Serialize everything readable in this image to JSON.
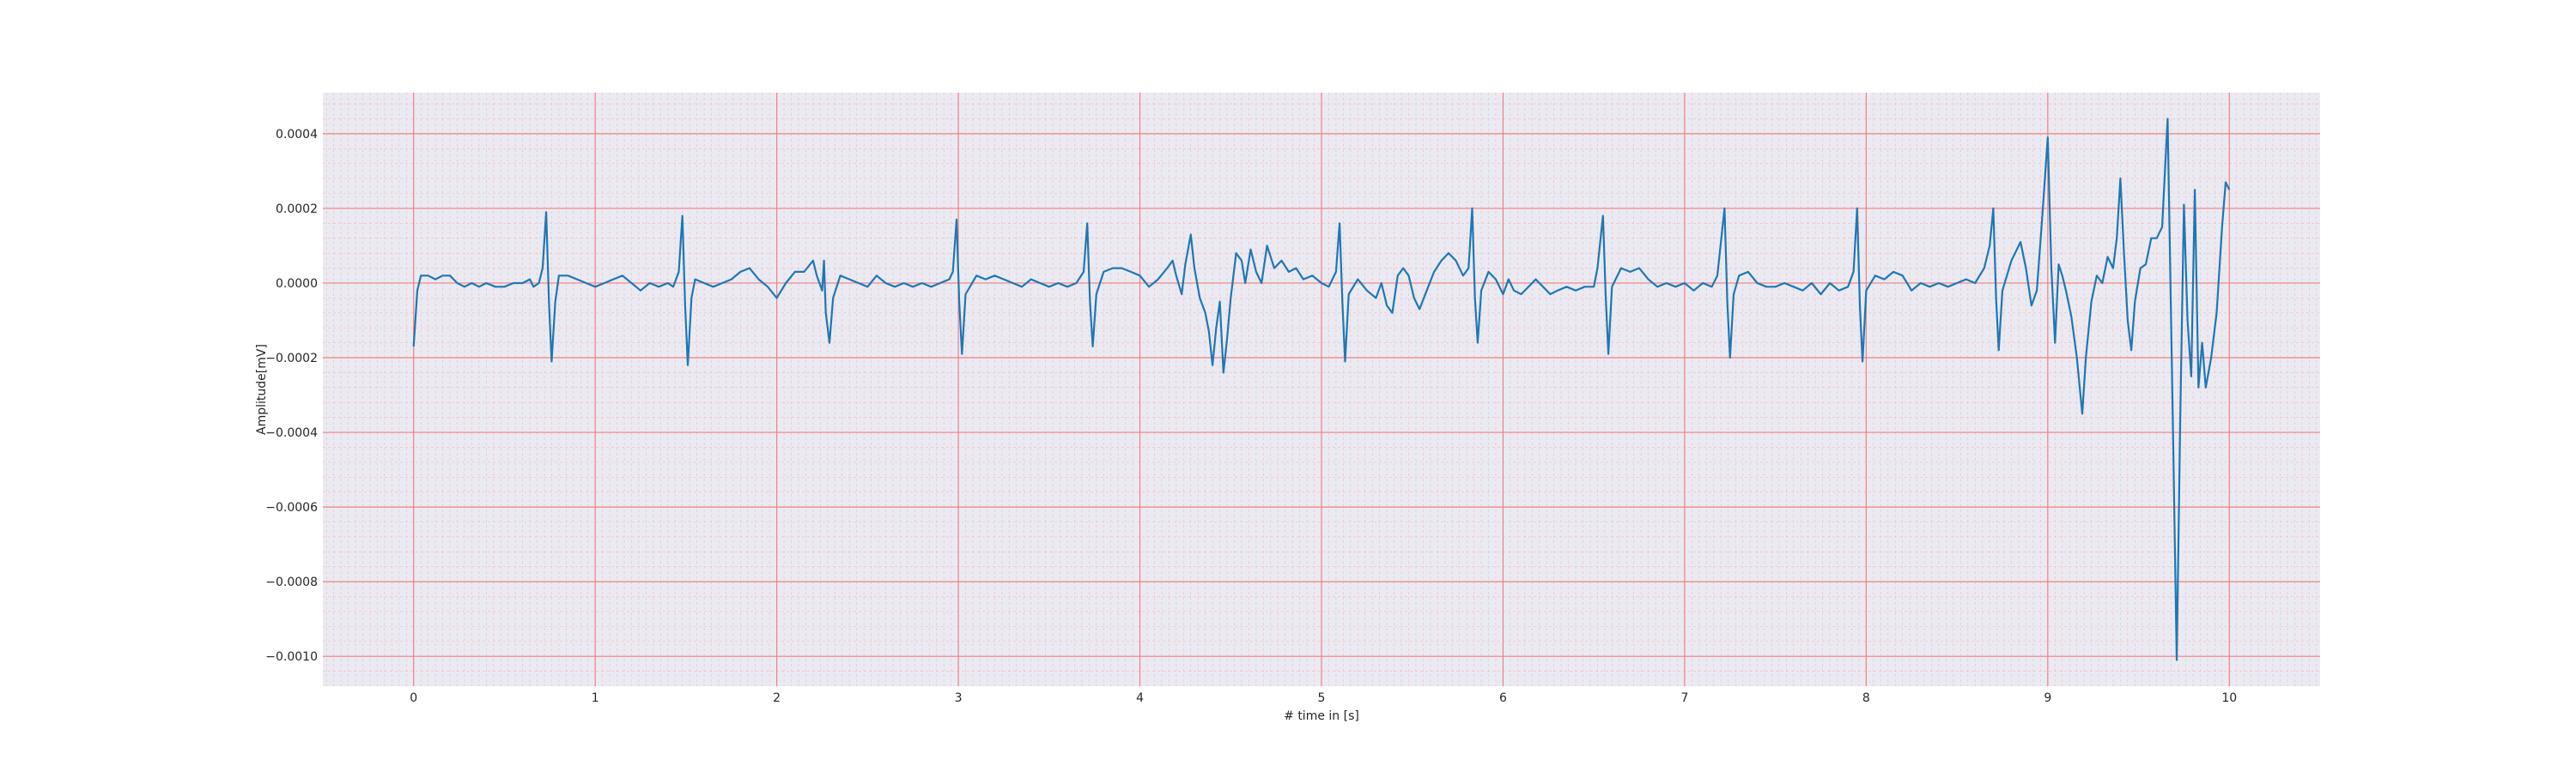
{
  "chart_data": {
    "type": "line",
    "title": "",
    "xlabel": "# time in [s]",
    "ylabel": "Amplitude[mV]",
    "xlim": [
      -0.5,
      10.5
    ],
    "ylim": [
      -0.00108,
      0.00051
    ],
    "xticks": [
      0,
      1,
      2,
      3,
      4,
      5,
      6,
      7,
      8,
      9,
      10
    ],
    "xtick_labels": [
      "0",
      "1",
      "2",
      "3",
      "4",
      "5",
      "6",
      "7",
      "8",
      "9",
      "10"
    ],
    "yticks": [
      0.0004,
      0.0002,
      0.0,
      -0.0002,
      -0.0004,
      -0.0006,
      -0.0008,
      -0.001
    ],
    "ytick_labels": [
      "0.0004",
      "0.0002",
      "0.0000",
      "−0.0002",
      "−0.0004",
      "−0.0006",
      "−0.0008",
      "−0.0010"
    ],
    "grid": true,
    "grid_style": "ecg",
    "background": "#eaeaf2",
    "grid_major_color": "#f08080",
    "grid_minor_color": "#f6b8b8",
    "series": [
      {
        "color": "#1f77b4",
        "points": [
          [
            0.0,
            -0.00017
          ],
          [
            0.02,
            -2e-05
          ],
          [
            0.04,
            2e-05
          ],
          [
            0.08,
            2e-05
          ],
          [
            0.12,
            1e-05
          ],
          [
            0.16,
            2e-05
          ],
          [
            0.2,
            2e-05
          ],
          [
            0.24,
            0.0
          ],
          [
            0.28,
            -1e-05
          ],
          [
            0.32,
            0.0
          ],
          [
            0.36,
            -1e-05
          ],
          [
            0.4,
            0.0
          ],
          [
            0.45,
            -1e-05
          ],
          [
            0.5,
            -1e-05
          ],
          [
            0.55,
            0.0
          ],
          [
            0.6,
            0.0
          ],
          [
            0.64,
            1e-05
          ],
          [
            0.66,
            -1e-05
          ],
          [
            0.69,
            0.0
          ],
          [
            0.71,
            4e-05
          ],
          [
            0.73,
            0.00019
          ],
          [
            0.745,
            -5e-05
          ],
          [
            0.76,
            -0.00021
          ],
          [
            0.78,
            -5e-05
          ],
          [
            0.8,
            2e-05
          ],
          [
            0.85,
            2e-05
          ],
          [
            0.9,
            1e-05
          ],
          [
            0.95,
            0.0
          ],
          [
            1.0,
            -1e-05
          ],
          [
            1.05,
            0.0
          ],
          [
            1.1,
            1e-05
          ],
          [
            1.15,
            2e-05
          ],
          [
            1.2,
            0.0
          ],
          [
            1.25,
            -2e-05
          ],
          [
            1.3,
            0.0
          ],
          [
            1.35,
            -1e-05
          ],
          [
            1.4,
            0.0
          ],
          [
            1.43,
            -1e-05
          ],
          [
            1.46,
            3e-05
          ],
          [
            1.48,
            0.00018
          ],
          [
            1.495,
            -6e-05
          ],
          [
            1.51,
            -0.00022
          ],
          [
            1.53,
            -4e-05
          ],
          [
            1.55,
            1e-05
          ],
          [
            1.6,
            0.0
          ],
          [
            1.65,
            -1e-05
          ],
          [
            1.7,
            0.0
          ],
          [
            1.75,
            1e-05
          ],
          [
            1.8,
            3e-05
          ],
          [
            1.85,
            4e-05
          ],
          [
            1.9,
            1e-05
          ],
          [
            1.95,
            -1e-05
          ],
          [
            2.0,
            -4e-05
          ],
          [
            2.05,
            0.0
          ],
          [
            2.1,
            3e-05
          ],
          [
            2.15,
            3e-05
          ],
          [
            2.2,
            6e-05
          ],
          [
            2.22,
            2e-05
          ],
          [
            2.25,
            -2e-05
          ],
          [
            2.26,
            6e-05
          ],
          [
            2.27,
            -8e-05
          ],
          [
            2.29,
            -0.00016
          ],
          [
            2.31,
            -4e-05
          ],
          [
            2.35,
            2e-05
          ],
          [
            2.4,
            1e-05
          ],
          [
            2.45,
            0.0
          ],
          [
            2.5,
            -1e-05
          ],
          [
            2.55,
            2e-05
          ],
          [
            2.6,
            0.0
          ],
          [
            2.65,
            -1e-05
          ],
          [
            2.7,
            0.0
          ],
          [
            2.75,
            -1e-05
          ],
          [
            2.8,
            0.0
          ],
          [
            2.85,
            -1e-05
          ],
          [
            2.9,
            0.0
          ],
          [
            2.95,
            1e-05
          ],
          [
            2.97,
            3e-05
          ],
          [
            2.99,
            0.00017
          ],
          [
            3.005,
            -5e-05
          ],
          [
            3.02,
            -0.00019
          ],
          [
            3.04,
            -3e-05
          ],
          [
            3.1,
            2e-05
          ],
          [
            3.15,
            1e-05
          ],
          [
            3.2,
            2e-05
          ],
          [
            3.25,
            1e-05
          ],
          [
            3.3,
            0.0
          ],
          [
            3.35,
            -1e-05
          ],
          [
            3.4,
            1e-05
          ],
          [
            3.45,
            0.0
          ],
          [
            3.5,
            -1e-05
          ],
          [
            3.55,
            0.0
          ],
          [
            3.6,
            -1e-05
          ],
          [
            3.65,
            0.0
          ],
          [
            3.69,
            3e-05
          ],
          [
            3.71,
            0.00016
          ],
          [
            3.725,
            -5e-05
          ],
          [
            3.74,
            -0.00017
          ],
          [
            3.76,
            -3e-05
          ],
          [
            3.8,
            3e-05
          ],
          [
            3.85,
            4e-05
          ],
          [
            3.9,
            4e-05
          ],
          [
            3.95,
            3e-05
          ],
          [
            4.0,
            2e-05
          ],
          [
            4.05,
            -1e-05
          ],
          [
            4.1,
            1e-05
          ],
          [
            4.15,
            4e-05
          ],
          [
            4.18,
            6e-05
          ],
          [
            4.2,
            2e-05
          ],
          [
            4.23,
            -3e-05
          ],
          [
            4.25,
            5e-05
          ],
          [
            4.28,
            0.00013
          ],
          [
            4.3,
            4e-05
          ],
          [
            4.33,
            -4e-05
          ],
          [
            4.36,
            -8e-05
          ],
          [
            4.38,
            -0.00013
          ],
          [
            4.4,
            -0.00022
          ],
          [
            4.42,
            -0.00012
          ],
          [
            4.44,
            -5e-05
          ],
          [
            4.46,
            -0.00024
          ],
          [
            4.48,
            -0.00015
          ],
          [
            4.5,
            -4e-05
          ],
          [
            4.53,
            8e-05
          ],
          [
            4.56,
            6e-05
          ],
          [
            4.58,
            0.0
          ],
          [
            4.61,
            9e-05
          ],
          [
            4.64,
            3e-05
          ],
          [
            4.67,
            0.0
          ],
          [
            4.7,
            0.0001
          ],
          [
            4.74,
            4e-05
          ],
          [
            4.78,
            6e-05
          ],
          [
            4.82,
            3e-05
          ],
          [
            4.86,
            4e-05
          ],
          [
            4.9,
            1e-05
          ],
          [
            4.95,
            2e-05
          ],
          [
            5.0,
            0.0
          ],
          [
            5.04,
            -1e-05
          ],
          [
            5.08,
            3e-05
          ],
          [
            5.1,
            0.00016
          ],
          [
            5.115,
            -5e-05
          ],
          [
            5.13,
            -0.00021
          ],
          [
            5.15,
            -3e-05
          ],
          [
            5.2,
            1e-05
          ],
          [
            5.25,
            -2e-05
          ],
          [
            5.3,
            -4e-05
          ],
          [
            5.33,
            0.0
          ],
          [
            5.36,
            -6e-05
          ],
          [
            5.39,
            -8e-05
          ],
          [
            5.42,
            2e-05
          ],
          [
            5.45,
            4e-05
          ],
          [
            5.48,
            2e-05
          ],
          [
            5.51,
            -4e-05
          ],
          [
            5.54,
            -7e-05
          ],
          [
            5.58,
            -2e-05
          ],
          [
            5.62,
            3e-05
          ],
          [
            5.66,
            6e-05
          ],
          [
            5.7,
            8e-05
          ],
          [
            5.74,
            6e-05
          ],
          [
            5.78,
            2e-05
          ],
          [
            5.81,
            4e-05
          ],
          [
            5.83,
            0.0002
          ],
          [
            5.845,
            -4e-05
          ],
          [
            5.86,
            -0.00016
          ],
          [
            5.88,
            -2e-05
          ],
          [
            5.92,
            3e-05
          ],
          [
            5.96,
            1e-05
          ],
          [
            6.0,
            -3e-05
          ],
          [
            6.03,
            1e-05
          ],
          [
            6.06,
            -2e-05
          ],
          [
            6.1,
            -3e-05
          ],
          [
            6.14,
            -1e-05
          ],
          [
            6.18,
            1e-05
          ],
          [
            6.22,
            -1e-05
          ],
          [
            6.26,
            -3e-05
          ],
          [
            6.3,
            -2e-05
          ],
          [
            6.35,
            -1e-05
          ],
          [
            6.4,
            -2e-05
          ],
          [
            6.45,
            -1e-05
          ],
          [
            6.5,
            -1e-05
          ],
          [
            6.52,
            4e-05
          ],
          [
            6.55,
            0.00018
          ],
          [
            6.565,
            -3e-05
          ],
          [
            6.58,
            -0.00019
          ],
          [
            6.6,
            -1e-05
          ],
          [
            6.65,
            4e-05
          ],
          [
            6.7,
            3e-05
          ],
          [
            6.75,
            4e-05
          ],
          [
            6.8,
            1e-05
          ],
          [
            6.85,
            -1e-05
          ],
          [
            6.9,
            0.0
          ],
          [
            6.95,
            -1e-05
          ],
          [
            7.0,
            0.0
          ],
          [
            7.05,
            -2e-05
          ],
          [
            7.1,
            0.0
          ],
          [
            7.15,
            -1e-05
          ],
          [
            7.18,
            2e-05
          ],
          [
            7.22,
            0.0002
          ],
          [
            7.235,
            -5e-05
          ],
          [
            7.25,
            -0.0002
          ],
          [
            7.27,
            -3e-05
          ],
          [
            7.3,
            2e-05
          ],
          [
            7.35,
            3e-05
          ],
          [
            7.4,
            0.0
          ],
          [
            7.45,
            -1e-05
          ],
          [
            7.5,
            -1e-05
          ],
          [
            7.55,
            0.0
          ],
          [
            7.6,
            -1e-05
          ],
          [
            7.65,
            -2e-05
          ],
          [
            7.7,
            0.0
          ],
          [
            7.75,
            -3e-05
          ],
          [
            7.8,
            0.0
          ],
          [
            7.85,
            -2e-05
          ],
          [
            7.9,
            -1e-05
          ],
          [
            7.93,
            3e-05
          ],
          [
            7.95,
            0.0002
          ],
          [
            7.965,
            -6e-05
          ],
          [
            7.98,
            -0.00021
          ],
          [
            8.0,
            -2e-05
          ],
          [
            8.05,
            2e-05
          ],
          [
            8.1,
            1e-05
          ],
          [
            8.15,
            3e-05
          ],
          [
            8.2,
            2e-05
          ],
          [
            8.25,
            -2e-05
          ],
          [
            8.3,
            0.0
          ],
          [
            8.35,
            -1e-05
          ],
          [
            8.4,
            0.0
          ],
          [
            8.45,
            -1e-05
          ],
          [
            8.5,
            0.0
          ],
          [
            8.55,
            1e-05
          ],
          [
            8.6,
            0.0
          ],
          [
            8.65,
            4e-05
          ],
          [
            8.68,
            0.0001
          ],
          [
            8.7,
            0.0002
          ],
          [
            8.715,
            -4e-05
          ],
          [
            8.73,
            -0.00018
          ],
          [
            8.75,
            -2e-05
          ],
          [
            8.8,
            6e-05
          ],
          [
            8.85,
            0.00011
          ],
          [
            8.88,
            4e-05
          ],
          [
            8.91,
            -6e-05
          ],
          [
            8.94,
            -2e-05
          ],
          [
            8.97,
            0.00018
          ],
          [
            9.0,
            0.00039
          ],
          [
            9.02,
            4e-05
          ],
          [
            9.04,
            -0.00016
          ],
          [
            9.06,
            5e-05
          ],
          [
            9.08,
            2e-05
          ],
          [
            9.1,
            -2e-05
          ],
          [
            9.13,
            -9e-05
          ],
          [
            9.16,
            -0.0002
          ],
          [
            9.19,
            -0.00035
          ],
          [
            9.21,
            -0.0002
          ],
          [
            9.24,
            -5e-05
          ],
          [
            9.27,
            2e-05
          ],
          [
            9.3,
            0.0
          ],
          [
            9.33,
            7e-05
          ],
          [
            9.36,
            4e-05
          ],
          [
            9.38,
            0.00012
          ],
          [
            9.4,
            0.00028
          ],
          [
            9.42,
            8e-05
          ],
          [
            9.44,
            -0.0001
          ],
          [
            9.46,
            -0.00018
          ],
          [
            9.48,
            -5e-05
          ],
          [
            9.51,
            4e-05
          ],
          [
            9.54,
            5e-05
          ],
          [
            9.57,
            0.00012
          ],
          [
            9.6,
            0.00012
          ],
          [
            9.63,
            0.00015
          ],
          [
            9.66,
            0.00044
          ],
          [
            9.69,
            -0.0004
          ],
          [
            9.71,
            -0.00101
          ],
          [
            9.73,
            -0.00035
          ],
          [
            9.75,
            0.00021
          ],
          [
            9.77,
            -0.0001
          ],
          [
            9.79,
            -0.00025
          ],
          [
            9.81,
            0.00025
          ],
          [
            9.83,
            -0.00028
          ],
          [
            9.85,
            -0.00016
          ],
          [
            9.87,
            -0.00028
          ],
          [
            9.9,
            -0.0002
          ],
          [
            9.93,
            -8e-05
          ],
          [
            9.96,
            0.00015
          ],
          [
            9.98,
            0.00027
          ],
          [
            10.0,
            0.00025
          ]
        ]
      }
    ]
  }
}
